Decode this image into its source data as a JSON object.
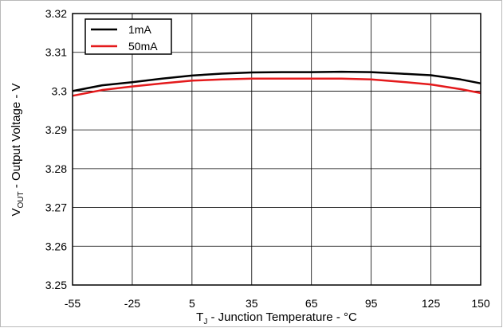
{
  "chart_data": {
    "type": "line",
    "title": "",
    "xlabel": {
      "main": "T",
      "sub": "J",
      "rest": " - Junction Temperature - °C"
    },
    "ylabel": {
      "main": "V",
      "sub": "OUT",
      "rest": " - Output Voltage - V"
    },
    "xlim": [
      -55,
      150
    ],
    "ylim": [
      3.25,
      3.32
    ],
    "x_ticks": [
      "-55",
      "-25",
      "5",
      "35",
      "65",
      "95",
      "125",
      "150"
    ],
    "x_tick_values": [
      -55,
      -25,
      5,
      35,
      65,
      95,
      125,
      150
    ],
    "y_ticks": [
      "3.25",
      "3.26",
      "3.27",
      "3.28",
      "3.29",
      "3.3",
      "3.31",
      "3.32"
    ],
    "y_tick_values": [
      3.25,
      3.26,
      3.27,
      3.28,
      3.29,
      3.3,
      3.31,
      3.32
    ],
    "grid": true,
    "legend_position": "top-left",
    "series": [
      {
        "name": "1mA",
        "color": "#000000",
        "x": [
          -55,
          -40,
          -25,
          -10,
          5,
          20,
          35,
          50,
          65,
          80,
          95,
          110,
          125,
          140,
          150
        ],
        "y": [
          3.3,
          3.3015,
          3.3023,
          3.3032,
          3.304,
          3.3045,
          3.3048,
          3.3049,
          3.3049,
          3.305,
          3.3049,
          3.3045,
          3.3041,
          3.303,
          3.302
        ]
      },
      {
        "name": "50mA",
        "color": "#e41a1c",
        "x": [
          -55,
          -40,
          -25,
          -10,
          5,
          20,
          35,
          50,
          65,
          80,
          95,
          110,
          125,
          140,
          150
        ],
        "y": [
          3.2988,
          3.3003,
          3.3012,
          3.302,
          3.3027,
          3.303,
          3.3032,
          3.3032,
          3.3032,
          3.3032,
          3.303,
          3.3024,
          3.3017,
          3.3005,
          3.2995
        ]
      }
    ]
  }
}
